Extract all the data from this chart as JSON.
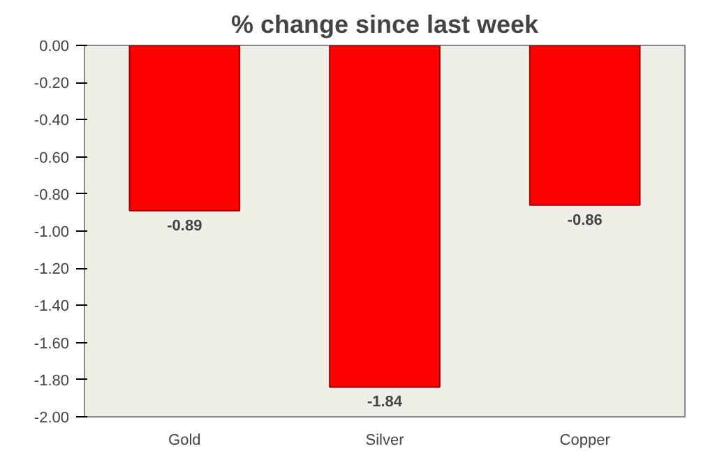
{
  "chart_data": {
    "type": "bar",
    "title": "% change since last week",
    "categories": [
      "Gold",
      "Silver",
      "Copper"
    ],
    "values": [
      -0.89,
      -1.84,
      -0.86
    ],
    "value_labels": [
      "-0.89",
      "-1.84",
      "-0.86"
    ],
    "color": "#ff0000",
    "ylim": [
      -2.0,
      0.0
    ],
    "yticks": [
      {
        "value": 0.0,
        "label": "0.00"
      },
      {
        "value": -0.2,
        "label": "-0.20"
      },
      {
        "value": -0.4,
        "label": "-0.40"
      },
      {
        "value": -0.6,
        "label": "-0.60"
      },
      {
        "value": -0.8,
        "label": "-0.80"
      },
      {
        "value": -1.0,
        "label": "-1.00"
      },
      {
        "value": -1.2,
        "label": "-1.20"
      },
      {
        "value": -1.4,
        "label": "-1.40"
      },
      {
        "value": -1.6,
        "label": "-1.60"
      },
      {
        "value": -1.8,
        "label": "-1.80"
      },
      {
        "value": -2.0,
        "label": "-2.00"
      }
    ],
    "grid": false
  }
}
